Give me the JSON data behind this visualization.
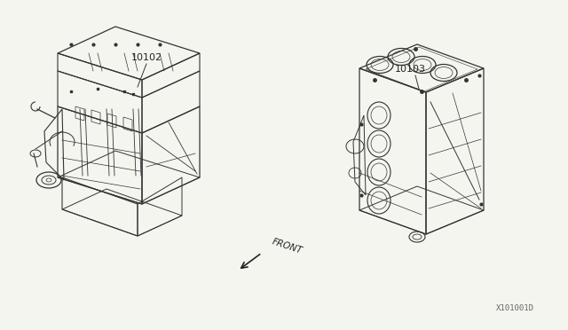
{
  "background_color": "#f5f5f0",
  "fig_width": 6.4,
  "fig_height": 3.72,
  "dpi": 100,
  "label_10102": "10102",
  "label_10103": "10103",
  "label_front": "FRONT",
  "label_diagram_id": "X101001D",
  "text_color": "#222222",
  "line_color": "#333333",
  "engine_color": "#333333"
}
